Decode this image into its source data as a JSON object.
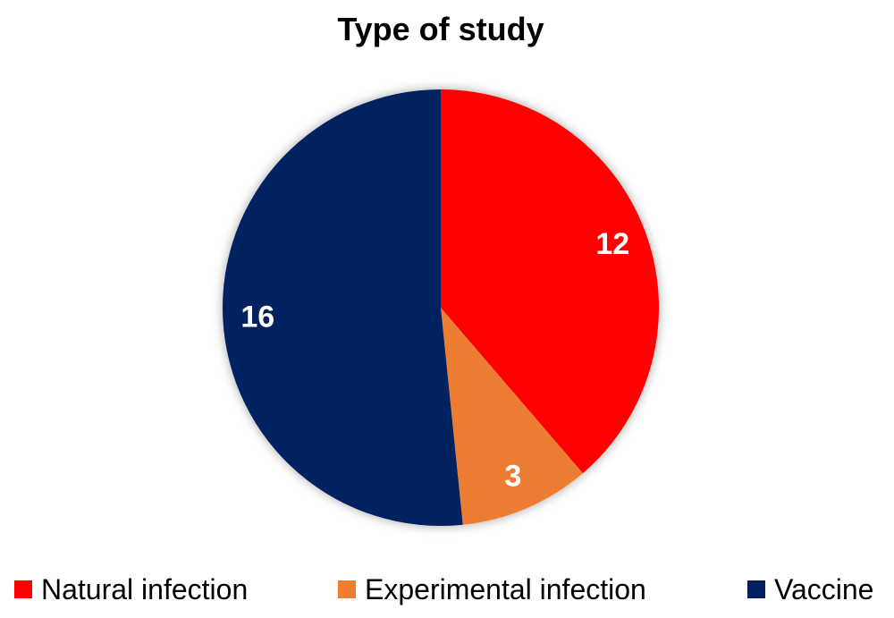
{
  "chart_data": {
    "type": "pie",
    "title": "Type of study",
    "categories": [
      "Natural infection",
      "Experimental infection",
      "Vaccine"
    ],
    "values": [
      12,
      3,
      16
    ],
    "data_labels": [
      "12",
      "3",
      "16"
    ],
    "colors": [
      "#FF0000",
      "#ED7D31",
      "#002060"
    ],
    "start_angle_deg": 0,
    "direction": "clockwise",
    "legend_position": "bottom"
  }
}
